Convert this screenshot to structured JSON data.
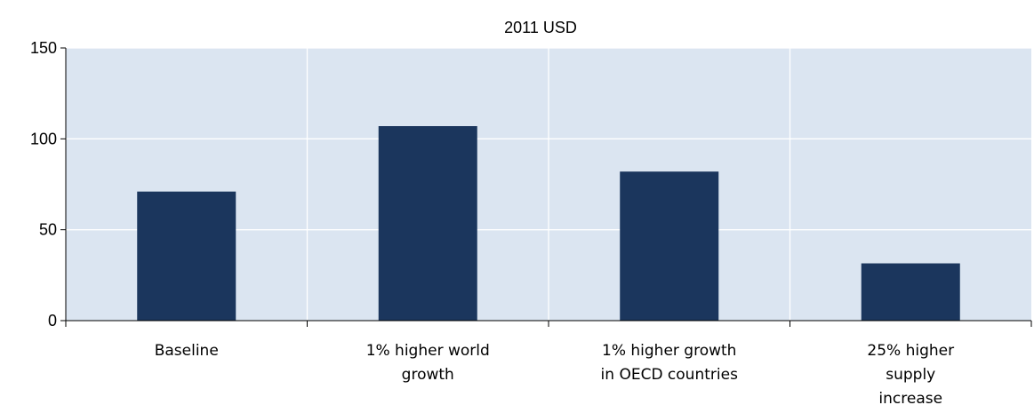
{
  "chart_data": {
    "type": "bar",
    "title": "2011 USD",
    "xlabel": "",
    "ylabel": "",
    "categories": [
      [
        "Baseline"
      ],
      [
        "1% higher world",
        "growth"
      ],
      [
        "1% higher growth",
        "in OECD countries"
      ],
      [
        "25% higher",
        "supply",
        "increase"
      ]
    ],
    "values": [
      71,
      107,
      82,
      31.5
    ],
    "ylim": [
      0,
      150
    ],
    "yticks": [
      "0",
      "50",
      "100",
      "150"
    ],
    "grid": true,
    "legend": "none",
    "colors": {
      "bar": "#1b365d",
      "plot_background": "#dbe5f1",
      "grid": "#ffffff",
      "axis": "#000000"
    }
  }
}
